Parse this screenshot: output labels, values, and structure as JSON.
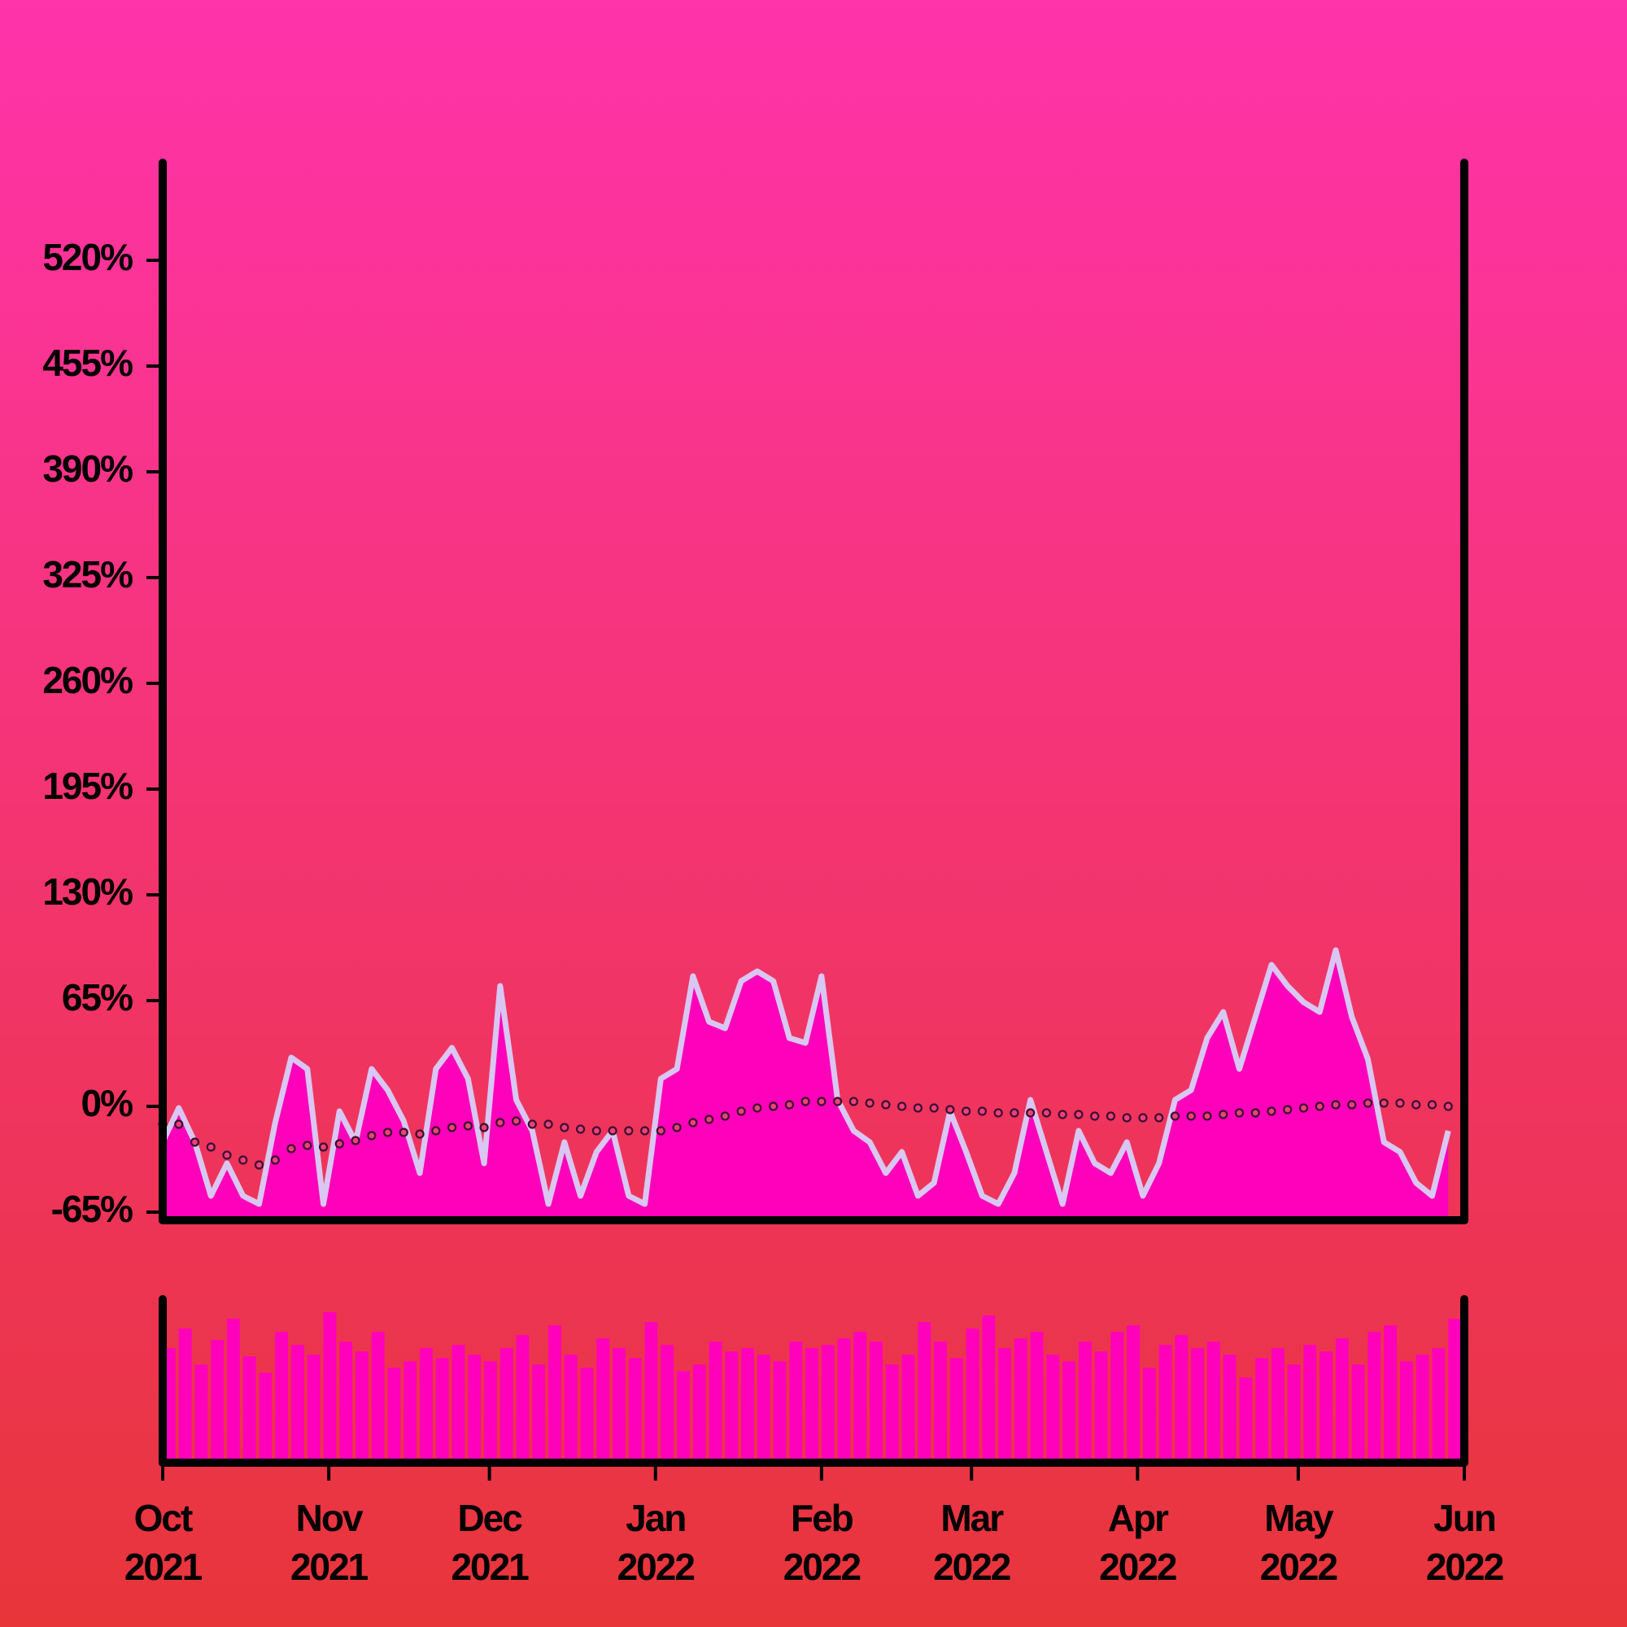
{
  "chart_data": {
    "type": "line",
    "x": [
      0,
      3,
      6,
      9,
      12,
      15,
      18,
      21,
      24,
      27,
      30,
      33,
      36,
      39,
      42,
      45,
      48,
      51,
      54,
      57,
      60,
      63,
      66,
      69,
      72,
      75,
      78,
      81,
      84,
      87,
      90,
      93,
      96,
      99,
      102,
      105,
      108,
      111,
      114,
      117,
      120,
      123,
      126,
      129,
      132,
      135,
      138,
      141,
      144,
      147,
      150,
      153,
      156,
      159,
      162,
      165,
      168,
      171,
      174,
      177,
      180,
      183,
      186,
      189,
      192,
      195,
      198,
      201,
      204,
      207,
      210,
      213,
      216,
      219,
      222,
      225,
      228,
      231,
      234,
      237,
      240
    ],
    "xlim": [
      0,
      243
    ],
    "xticks": [
      {
        "value": 0,
        "label": "Oct\n2021"
      },
      {
        "value": 31,
        "label": "Nov\n2021"
      },
      {
        "value": 61,
        "label": "Dec\n2021"
      },
      {
        "value": 92,
        "label": "Jan\n2022"
      },
      {
        "value": 123,
        "label": "Feb\n2022"
      },
      {
        "value": 151,
        "label": "Mar\n2022"
      },
      {
        "value": 182,
        "label": "Apr\n2022"
      },
      {
        "value": 212,
        "label": "May\n2022"
      },
      {
        "value": 243,
        "label": "Jun\n2022"
      }
    ],
    "ylim": [
      -70,
      580
    ],
    "yticks": [
      {
        "value": -65,
        "label": "-65%"
      },
      {
        "value": 0,
        "label": "0%"
      },
      {
        "value": 65,
        "label": "65%"
      },
      {
        "value": 130,
        "label": "130%"
      },
      {
        "value": 195,
        "label": "195%"
      },
      {
        "value": 260,
        "label": "260%"
      },
      {
        "value": 325,
        "label": "325%"
      },
      {
        "value": 390,
        "label": "390%"
      },
      {
        "value": 455,
        "label": "455%"
      },
      {
        "value": 520,
        "label": "520%"
      }
    ],
    "y2lim": [
      0,
      100
    ],
    "series": [
      {
        "type": "area",
        "color": "#ff00bb",
        "line_color": "#d9c6f2",
        "values": [
          -22,
          -1,
          -22,
          -55,
          -35,
          -55,
          -60,
          -10,
          30,
          23,
          -60,
          -3,
          -22,
          23,
          10,
          -9,
          -41,
          23,
          36,
          17,
          -35,
          74,
          4,
          -15,
          -60,
          -22,
          -55,
          -28,
          -15,
          -55,
          -60,
          17,
          23,
          80,
          52,
          48,
          77,
          83,
          77,
          42,
          39,
          80,
          4,
          -15,
          -22,
          -41,
          -28,
          -55,
          -47,
          -3,
          -28,
          -55,
          -60,
          -41,
          4,
          -28,
          -60,
          -15,
          -35,
          -41,
          -22,
          -55,
          -35,
          4,
          10,
          42,
          58,
          23,
          55,
          87,
          74,
          64,
          58,
          96,
          55,
          29,
          -22,
          -28,
          -47,
          -55,
          -15
        ]
      },
      {
        "type": "scatter",
        "color": "#3a1030",
        "values": [
          -11,
          -11,
          -22,
          -25,
          -30,
          -33,
          -36,
          -33,
          -26,
          -24,
          -25,
          -23,
          -21,
          -18,
          -16,
          -16,
          -17,
          -15,
          -13,
          -12,
          -13,
          -10,
          -9,
          -11,
          -11,
          -13,
          -14,
          -15,
          -15,
          -15,
          -15,
          -15,
          -13,
          -10,
          -8,
          -6,
          -3,
          -1,
          0,
          1,
          3,
          3,
          3,
          3,
          2,
          1,
          0,
          -1,
          -1,
          -2,
          -3,
          -3,
          -4,
          -4,
          -4,
          -4,
          -5,
          -5,
          -6,
          -6,
          -7,
          -7,
          -7,
          -6,
          -6,
          -6,
          -5,
          -4,
          -4,
          -3,
          -2,
          -1,
          0,
          1,
          1,
          2,
          2,
          2,
          1,
          1,
          0
        ]
      },
      {
        "type": "bar",
        "axis": "y2",
        "color": "#ff00bb",
        "values": [
          70,
          82,
          60,
          75,
          88,
          65,
          55,
          80,
          72,
          66,
          92,
          74,
          68,
          80,
          58,
          62,
          70,
          64,
          72,
          66,
          62,
          70,
          78,
          60,
          84,
          66,
          58,
          76,
          70,
          64,
          86,
          72,
          56,
          60,
          74,
          68,
          70,
          66,
          62,
          74,
          70,
          72,
          76,
          80,
          74,
          60,
          66,
          86,
          74,
          64,
          82,
          90,
          70,
          76,
          80,
          66,
          62,
          74,
          68,
          80,
          84,
          58,
          72,
          78,
          70,
          74,
          66,
          52,
          64,
          70,
          60,
          72,
          68,
          76,
          60,
          80,
          84,
          62,
          66,
          70,
          88
        ]
      }
    ]
  }
}
